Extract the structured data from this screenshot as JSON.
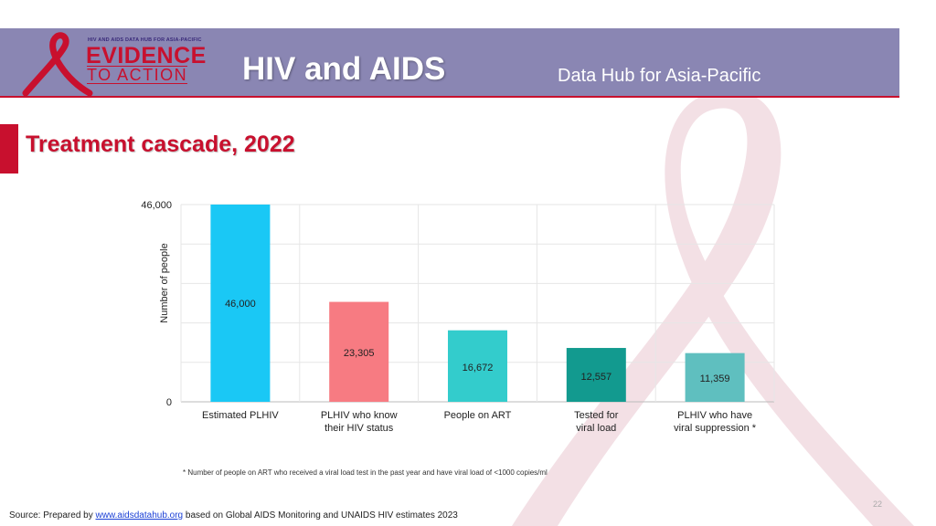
{
  "header": {
    "logo_small": "HIV AND AIDS DATA HUB FOR ASIA-PACIFIC",
    "logo_line1": "EVIDENCE",
    "logo_line2": "TO ACTION",
    "title": "HIV and AIDS",
    "subtitle": "Data Hub for Asia-Pacific"
  },
  "page_title": "Treatment cascade, 2022",
  "chart_data": {
    "type": "bar",
    "ylabel": "Number of people",
    "ylim": [
      0,
      46000
    ],
    "y_ticks": [
      "0",
      "46,000"
    ],
    "grid": true,
    "categories": [
      [
        "Estimated PLHIV"
      ],
      [
        "PLHIV who know",
        "their HIV status"
      ],
      [
        "People on ART"
      ],
      [
        "Tested for",
        "viral load"
      ],
      [
        "PLHIV who have",
        "viral suppression *"
      ]
    ],
    "values": [
      46000,
      23305,
      16672,
      12557,
      11359
    ],
    "value_labels": [
      "46,000",
      "23,305",
      "16,672",
      "12,557",
      "11,359"
    ],
    "colors": [
      "#1ac8f5",
      "#f77b82",
      "#33cccc",
      "#129a8f",
      "#5fbfbf"
    ]
  },
  "footnote": "* Number of people on ART who received a viral load test in the past year and have viral load of <1000 copies/ml",
  "source": {
    "prefix": "Source: Prepared by ",
    "link": "www.aidsdatahub.org",
    "suffix": "  based on Global AIDS Monitoring and UNAIDS HIV estimates 2023"
  },
  "page_number": "22"
}
